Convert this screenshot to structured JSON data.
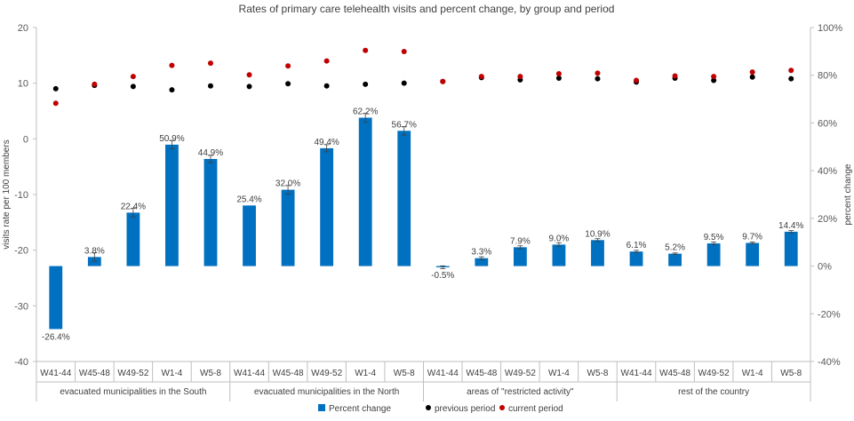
{
  "chart_data": {
    "type": "bar",
    "title": "Rates of primary care telehealth visits and percent change, by group and period",
    "ylabel_left": "visits rate per 100 members",
    "ylabel_right": "percent change",
    "ylim_left": [
      -40,
      20
    ],
    "ylim_right": [
      -40,
      100
    ],
    "yticks_left": [
      "-40",
      "-30",
      "-20",
      "-10",
      "0",
      "10",
      "20"
    ],
    "yticks_right": [
      "-40%",
      "-20%",
      "0%",
      "20%",
      "40%",
      "60%",
      "80%",
      "100%"
    ],
    "groups": [
      "evacuated municipalities in the South",
      "evacuated municipalities in the North",
      "areas of \"restricted activity\"",
      "rest of the country"
    ],
    "periods": [
      "W41-44",
      "W45-48",
      "W49-52",
      "W1-4",
      "W5-8"
    ],
    "series": [
      {
        "name": "Percent change",
        "axis": "right",
        "color": "#0070c0",
        "values": [
          -26.4,
          3.8,
          22.4,
          50.9,
          44.9,
          25.4,
          32.0,
          49.4,
          62.2,
          56.7,
          -0.5,
          3.3,
          7.9,
          9.0,
          10.9,
          6.1,
          5.2,
          9.5,
          9.7,
          14.4
        ],
        "labels": [
          "-26.4%",
          "3.8%",
          "22.4%",
          "50.9%",
          "44.9%",
          "25.4%",
          "32.0%",
          "49.4%",
          "62.2%",
          "56.7%",
          "-0.5%",
          "3.3%",
          "7.9%",
          "9.0%",
          "10.9%",
          "6.1%",
          "5.2%",
          "9.5%",
          "9.7%",
          "14.4%"
        ],
        "errors": [
          0,
          1.8,
          1.8,
          1.8,
          1.5,
          0,
          1.8,
          1.5,
          1.8,
          1.8,
          0.6,
          0.6,
          0.6,
          0.8,
          0.6,
          0.5,
          0.3,
          0.6,
          0.4,
          0.5
        ]
      },
      {
        "name": "previous period",
        "axis": "left",
        "color": "#000000",
        "values": [
          9.0,
          9.6,
          9.4,
          8.8,
          9.5,
          9.4,
          9.9,
          9.5,
          9.8,
          10.0,
          10.3,
          11.0,
          10.6,
          10.9,
          10.8,
          10.2,
          10.9,
          10.5,
          11.1,
          10.8
        ]
      },
      {
        "name": "current period",
        "axis": "left",
        "color": "#c00000",
        "values": [
          6.4,
          9.8,
          11.2,
          13.2,
          13.6,
          11.5,
          13.1,
          14.0,
          15.9,
          15.7,
          10.3,
          11.2,
          11.2,
          11.7,
          11.8,
          10.5,
          11.3,
          11.2,
          12.0,
          12.3
        ]
      }
    ],
    "legend_position": "bottom",
    "gridlines": false
  }
}
